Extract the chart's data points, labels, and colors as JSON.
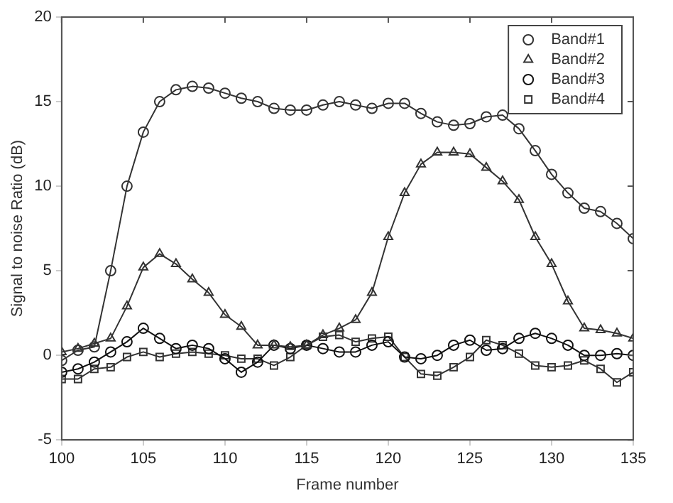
{
  "chart_data": {
    "type": "line",
    "xlabel": "Frame number",
    "ylabel": "Signal to noise Ratio (dB)",
    "x": [
      100,
      101,
      102,
      103,
      104,
      105,
      106,
      107,
      108,
      109,
      110,
      111,
      112,
      113,
      114,
      115,
      116,
      117,
      118,
      119,
      120,
      121,
      122,
      123,
      124,
      125,
      126,
      127,
      128,
      129,
      130,
      131,
      132,
      133,
      134,
      135
    ],
    "series": [
      {
        "name": "Band#1",
        "color": "#333333",
        "marker": "circle",
        "values": [
          -0.3,
          0.3,
          0.5,
          5.0,
          10.0,
          13.2,
          15.0,
          15.7,
          15.9,
          15.8,
          15.5,
          15.2,
          15.0,
          14.6,
          14.5,
          14.5,
          14.8,
          15.0,
          14.8,
          14.6,
          14.9,
          14.9,
          14.3,
          13.8,
          13.6,
          13.7,
          14.1,
          14.2,
          13.4,
          12.1,
          10.7,
          9.6,
          8.7,
          8.5,
          7.8,
          6.9
        ]
      },
      {
        "name": "Band#2",
        "color": "#333333",
        "marker": "triangle",
        "values": [
          0.2,
          0.4,
          0.7,
          1.0,
          2.9,
          5.2,
          6.0,
          5.4,
          4.5,
          3.7,
          2.4,
          1.7,
          0.6,
          0.6,
          0.5,
          0.6,
          1.2,
          1.6,
          2.1,
          3.7,
          7.0,
          9.6,
          11.3,
          12.0,
          12.0,
          11.9,
          11.1,
          10.3,
          9.2,
          7.0,
          5.4,
          3.2,
          1.6,
          1.5,
          1.3,
          1.0
        ]
      },
      {
        "name": "Band#3",
        "color": "#111111",
        "marker": "circle",
        "values": [
          -1.0,
          -0.8,
          -0.4,
          0.2,
          0.8,
          1.6,
          1.0,
          0.4,
          0.6,
          0.4,
          -0.2,
          -1.0,
          -0.4,
          0.6,
          0.4,
          0.6,
          0.4,
          0.2,
          0.2,
          0.6,
          0.8,
          -0.1,
          -0.2,
          0.0,
          0.6,
          0.9,
          0.3,
          0.4,
          1.0,
          1.3,
          1.0,
          0.6,
          0.0,
          0.0,
          0.1,
          0.0
        ]
      },
      {
        "name": "Band#4",
        "color": "#333333",
        "marker": "square",
        "values": [
          -1.4,
          -1.4,
          -0.8,
          -0.7,
          -0.1,
          0.2,
          -0.1,
          0.1,
          0.2,
          0.1,
          0.0,
          -0.2,
          -0.2,
          -0.6,
          -0.1,
          0.6,
          1.1,
          1.2,
          0.8,
          1.0,
          1.1,
          -0.1,
          -1.1,
          -1.2,
          -0.7,
          -0.1,
          0.9,
          0.6,
          0.1,
          -0.6,
          -0.7,
          -0.6,
          -0.3,
          -0.8,
          -1.6,
          -1.0
        ]
      }
    ],
    "xlim": [
      100,
      135
    ],
    "xticks": [
      100,
      105,
      110,
      115,
      120,
      125,
      130,
      135
    ],
    "ylim": [
      -5,
      20
    ],
    "yticks": [
      -5,
      0,
      5,
      10,
      15,
      20
    ],
    "grid": false,
    "legend": "top right"
  }
}
